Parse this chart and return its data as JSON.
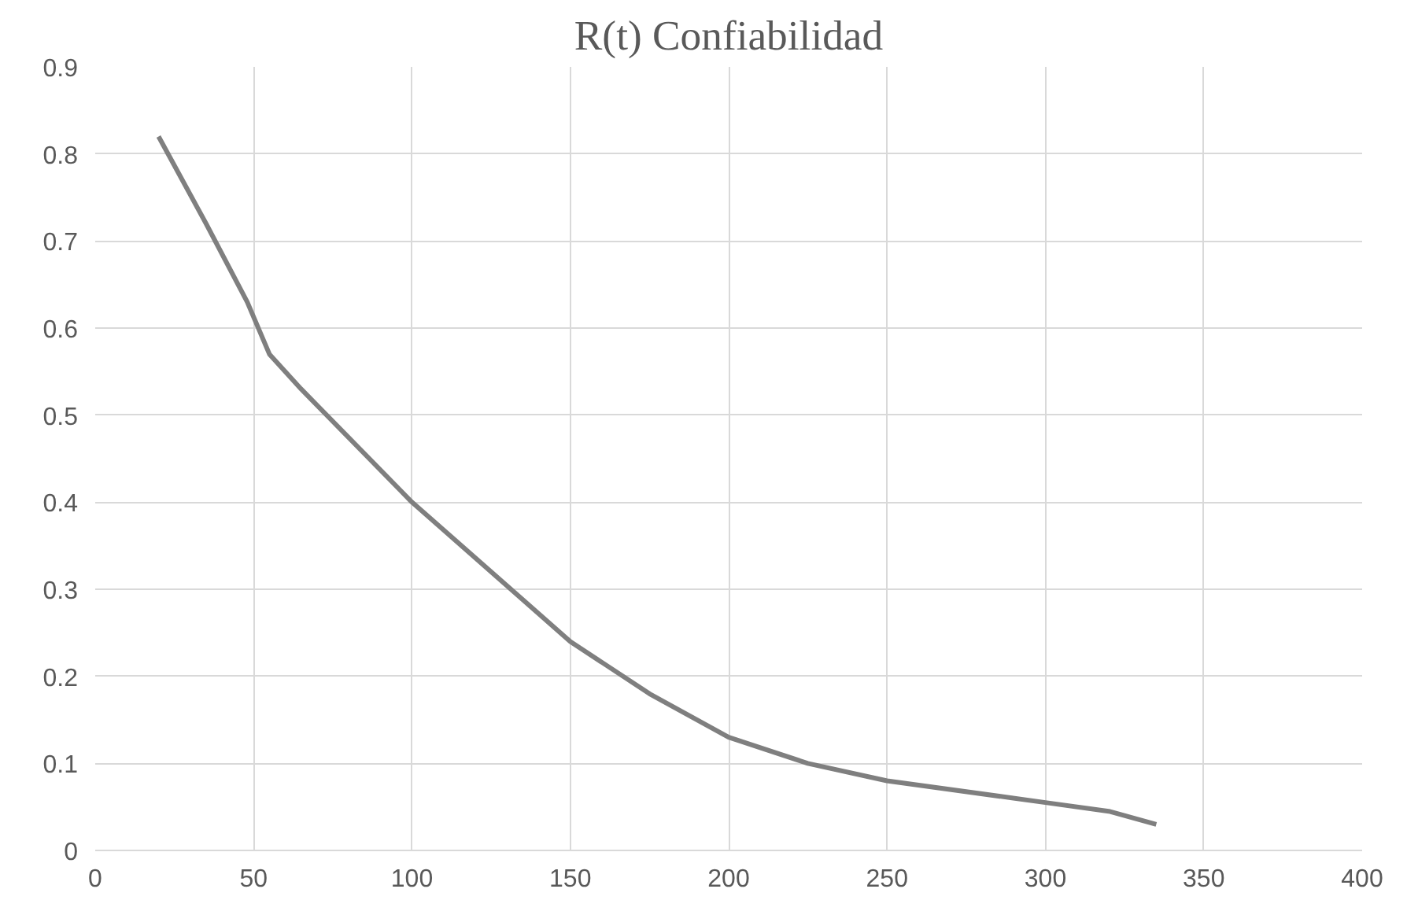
{
  "chart_data": {
    "type": "line",
    "title": "R(t) Confiabilidad",
    "x": [
      20,
      35,
      48,
      55,
      65,
      100,
      150,
      175,
      200,
      225,
      250,
      300,
      320,
      335
    ],
    "series": [
      {
        "color": "#7f7f7f",
        "values": [
          0.82,
          0.72,
          0.63,
          0.57,
          0.53,
          0.4,
          0.24,
          0.18,
          0.13,
          0.1,
          0.08,
          0.055,
          0.045,
          0.03
        ]
      }
    ],
    "xlim": [
      0,
      400
    ],
    "xticks": [
      0,
      50,
      100,
      150,
      200,
      250,
      300,
      350,
      400
    ],
    "ylim": [
      0,
      0.9
    ],
    "yticks": [
      0,
      0.1,
      0.2,
      0.3,
      0.4,
      0.5,
      0.6,
      0.7,
      0.8,
      0.9
    ],
    "grid": true,
    "marker": "none",
    "line_style": "solid"
  }
}
